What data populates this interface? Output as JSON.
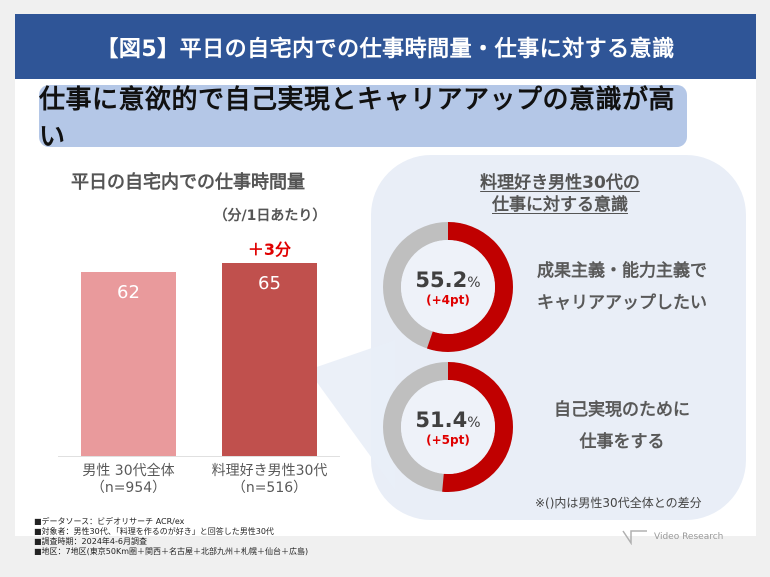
{
  "header": {
    "title": "【図5】平日の自宅内での仕事時間量・仕事に対する意識",
    "headline": "仕事に意欲的で自己実現とキャリアアップの意識が高い"
  },
  "colors": {
    "title_bar": "#2f5597",
    "headline_bg": "#b4c7e7",
    "bar_base": "#e99a9c",
    "bar_highlight": "#c0504d",
    "donut_fill": "#c00000",
    "donut_rest": "#bfbfbf",
    "accent_red": "#e00000",
    "panel_bg": "#e9eef7"
  },
  "chart_data": [
    {
      "type": "bar",
      "title": "平日の自宅内での仕事時間量",
      "unit_label": "（分/1日あたり）",
      "categories": [
        "男性 30代全体",
        "料理好き男性30代"
      ],
      "category_n": [
        "（n=954）",
        "（n=516）"
      ],
      "values": [
        62,
        65
      ],
      "value_labels": [
        "62",
        "65"
      ],
      "annotation": "＋3分",
      "annotation_target": "料理好き男性30代",
      "ylim": [
        0,
        65
      ],
      "xlabel": "",
      "ylabel": "",
      "grid": false
    },
    {
      "type": "pie",
      "title": "料理好き男性30代の仕事に対する意識",
      "title_lines": [
        "料理好き男性30代の",
        "仕事に対する意識"
      ],
      "items": [
        {
          "value": 55.2,
          "value_label": "55.2",
          "unit": "%",
          "diff_label": "(+4pt)",
          "label_lines": [
            "成果主義・能力主義で",
            "キャリアアップしたい"
          ]
        },
        {
          "value": 51.4,
          "value_label": "51.4",
          "unit": "%",
          "diff_label": "(+5pt)",
          "label_lines": [
            "自己実現のために",
            "仕事をする"
          ]
        }
      ],
      "note": "※()内は男性30代全体との差分"
    }
  ],
  "footnotes": [
    "■データソース：ビデオリサーチ ACR/ex",
    "■対象者：男性30代、「料理を作るのが好き」と回答した男性30代",
    "■調査時期：2024年4-6月調査",
    "■地区：7地区(東京50Km圏＋関西＋名古屋＋北部九州＋札幌＋仙台＋広島)"
  ],
  "brand": {
    "name": "Video Research"
  }
}
